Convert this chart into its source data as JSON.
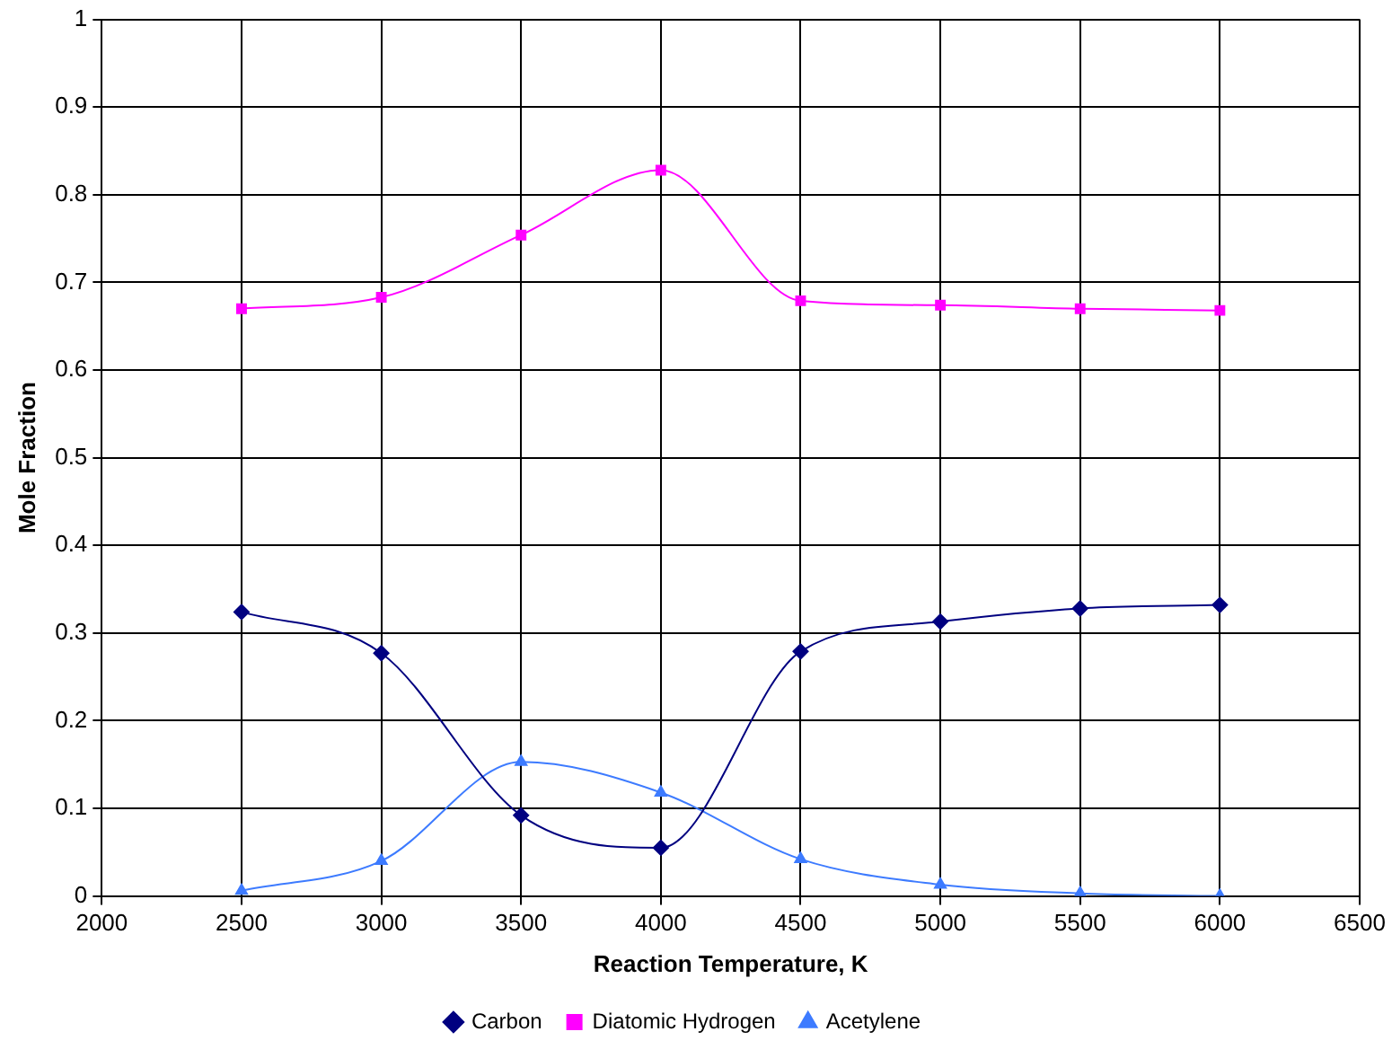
{
  "chart_data": {
    "type": "line",
    "xlabel": "Reaction Temperature, K",
    "ylabel": "Mole Fraction",
    "x": [
      2500,
      3000,
      3500,
      4000,
      4500,
      5000,
      5500,
      6000
    ],
    "series": [
      {
        "name": "Carbon",
        "color": "#000080",
        "marker": "diamond",
        "values": [
          0.324,
          0.277,
          0.092,
          0.055,
          0.279,
          0.313,
          0.328,
          0.332
        ]
      },
      {
        "name": "Diatomic Hydrogen",
        "color": "#ff00ff",
        "marker": "square",
        "values": [
          0.67,
          0.683,
          0.754,
          0.828,
          0.679,
          0.674,
          0.67,
          0.668
        ]
      },
      {
        "name": "Acetylene",
        "color": "#3d7bff",
        "marker": "triangle",
        "values": [
          0.006,
          0.04,
          0.153,
          0.118,
          0.042,
          0.013,
          0.003,
          0.0
        ]
      }
    ],
    "xlim": [
      2000,
      6500
    ],
    "xticks": [
      2000,
      2500,
      3000,
      3500,
      4000,
      4500,
      5000,
      5500,
      6000,
      6500
    ],
    "ylim": [
      0,
      1
    ],
    "yticks": [
      0,
      0.1,
      0.2,
      0.3,
      0.4,
      0.5,
      0.6,
      0.7,
      0.8,
      0.9,
      1
    ],
    "grid": true,
    "legend": "bottom",
    "line_style": "solid"
  }
}
